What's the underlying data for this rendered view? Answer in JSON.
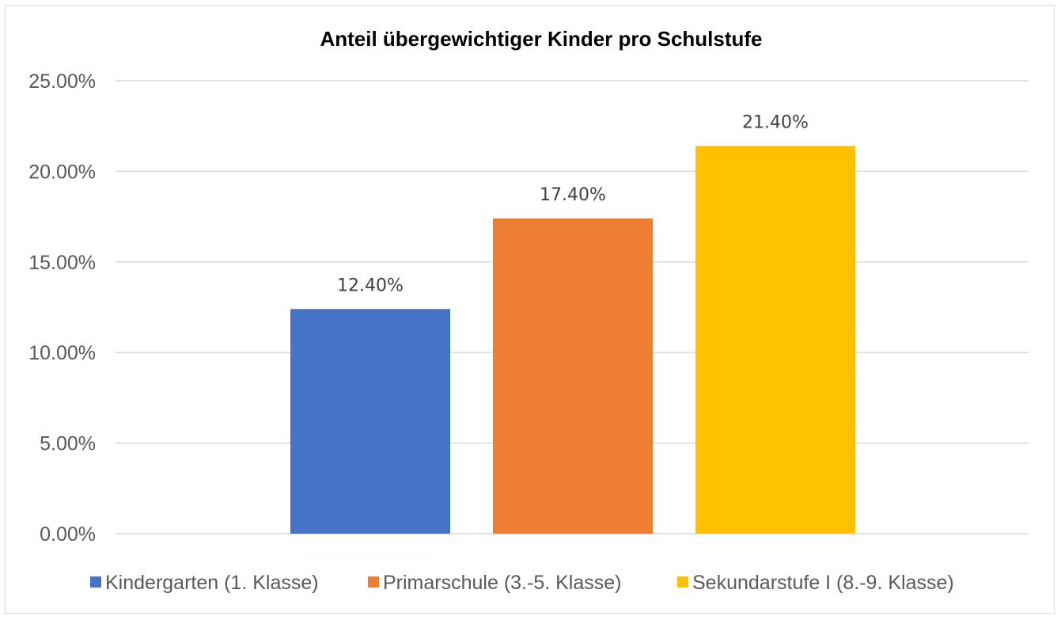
{
  "chart_data": {
    "type": "bar",
    "title": "Anteil übergewichtiger Kinder pro Schulstufe",
    "categories": [
      "Kindergarten (1. Klasse)",
      "Primarschule (3.-5. Klasse)",
      "Sekundarstufe I (8.-9. Klasse)"
    ],
    "series": [
      {
        "name": "Kindergarten (1. Klasse)",
        "values": [
          12.4,
          null,
          null
        ],
        "color": "#4472C4"
      },
      {
        "name": "Primarschule (3.-5. Klasse)",
        "values": [
          null,
          17.4,
          null
        ],
        "color": "#ED7D31"
      },
      {
        "name": "Sekundarstufe I (8.-9. Klasse)",
        "values": [
          null,
          null,
          21.4
        ],
        "color": "#FFC000"
      }
    ],
    "values": [
      12.4,
      17.4,
      21.4
    ],
    "data_labels": [
      "12.40%",
      "17.40%",
      "21.40%"
    ],
    "ylim": [
      0,
      25
    ],
    "yticks": [
      0,
      5,
      10,
      15,
      20,
      25
    ],
    "ytick_labels": [
      "0.00%",
      "5.00%",
      "10.00%",
      "15.00%",
      "20.00%",
      "25.00%"
    ],
    "xlabel": "",
    "ylabel": "",
    "grid": true,
    "legend_position": "bottom"
  }
}
